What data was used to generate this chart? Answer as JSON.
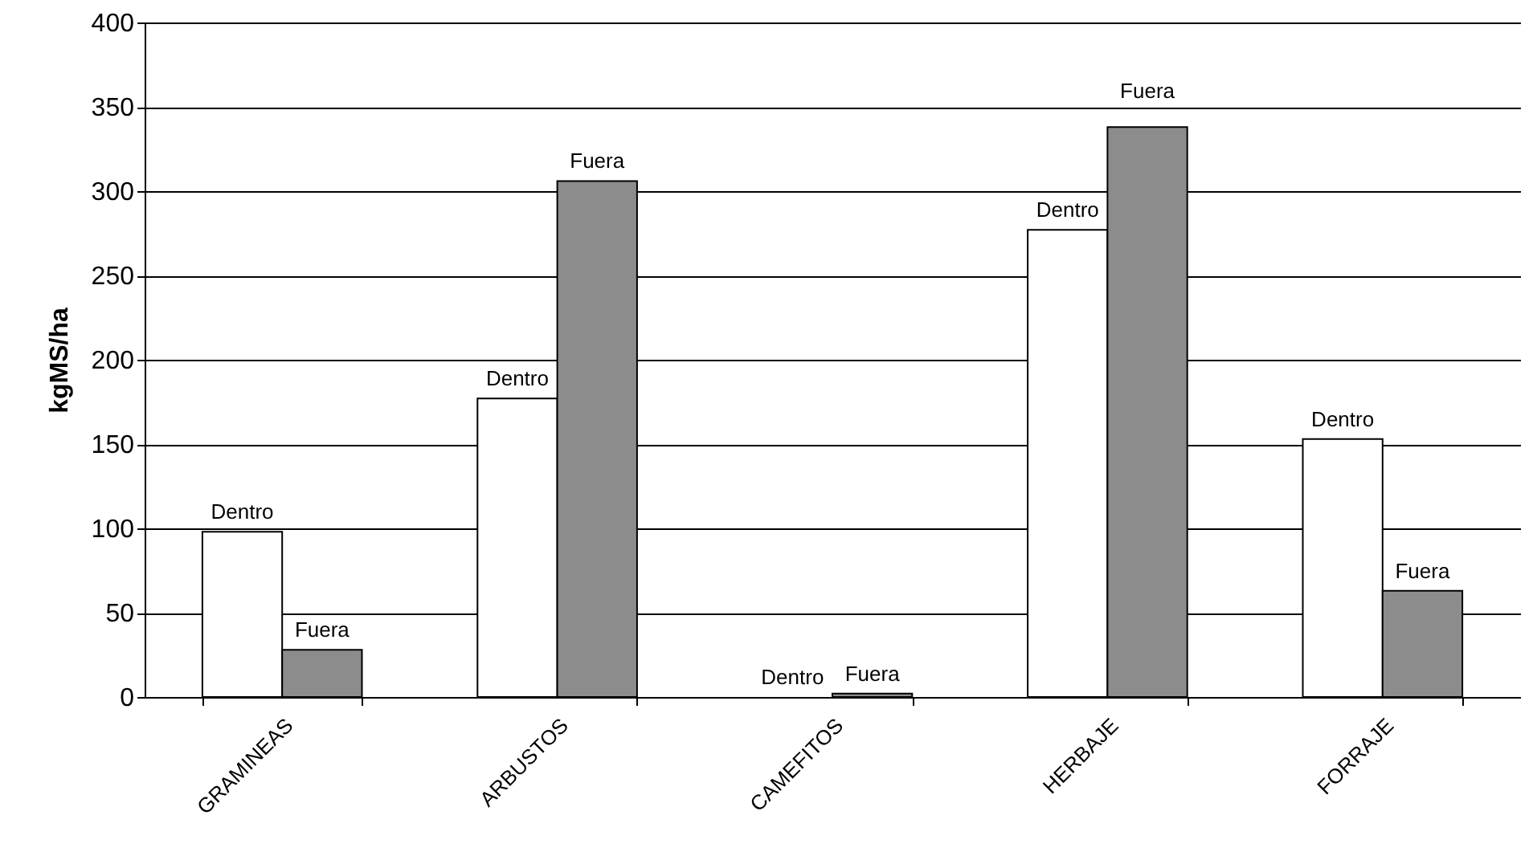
{
  "chart_data": {
    "type": "bar",
    "ylabel": "kgMS/ha",
    "categories": [
      "GRAMINEAS",
      "ARBUSTOS",
      "CAMEFITOS",
      "HERBAJE",
      "FORRAJE"
    ],
    "series": [
      {
        "name": "Dentro",
        "color": "#ffffff",
        "values": [
          98,
          177,
          0,
          277,
          153
        ]
      },
      {
        "name": "Fuera",
        "color": "#8c8c8c",
        "values": [
          28,
          306,
          2,
          338,
          63
        ]
      }
    ],
    "ylim": [
      0,
      400
    ],
    "yticks": [
      0,
      50,
      100,
      150,
      200,
      250,
      300,
      350,
      400
    ],
    "grid": "y"
  }
}
